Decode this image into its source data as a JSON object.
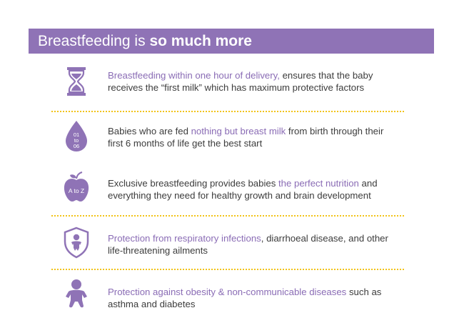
{
  "header": {
    "title_normal": "Breastfeeding is ",
    "title_bold": "so much more"
  },
  "colors": {
    "accent": "#8f73b6",
    "highlight": "#8a6cb5",
    "separator": "#f2c318"
  },
  "items": [
    {
      "icon": "hourglass-icon",
      "highlight": "Breastfeeding within one hour of delivery,",
      "rest": " ensures that the baby receives the “first milk” which has maximum protective factors"
    },
    {
      "icon": "milk-drop-icon",
      "icon_text_1": "01",
      "icon_text_2": "to",
      "icon_text_3": "06",
      "pre": "Babies who are fed ",
      "highlight": "nothing but breast milk",
      "rest": " from birth through their first 6 months of life get the best start"
    },
    {
      "icon": "apple-icon",
      "icon_text": "A to Z",
      "pre": "Exclusive breastfeeding provides babies ",
      "highlight": "the perfect nutrition",
      "rest": " and everything they need for healthy growth and brain development"
    },
    {
      "icon": "shield-baby-icon",
      "highlight": "Protection from respiratory infections",
      "rest": ", diarrhoeal disease, and other life-threatening ailments"
    },
    {
      "icon": "baby-icon",
      "highlight": "Protection against obesity & non-communicable diseases",
      "rest": " such as asthma and diabetes"
    }
  ]
}
